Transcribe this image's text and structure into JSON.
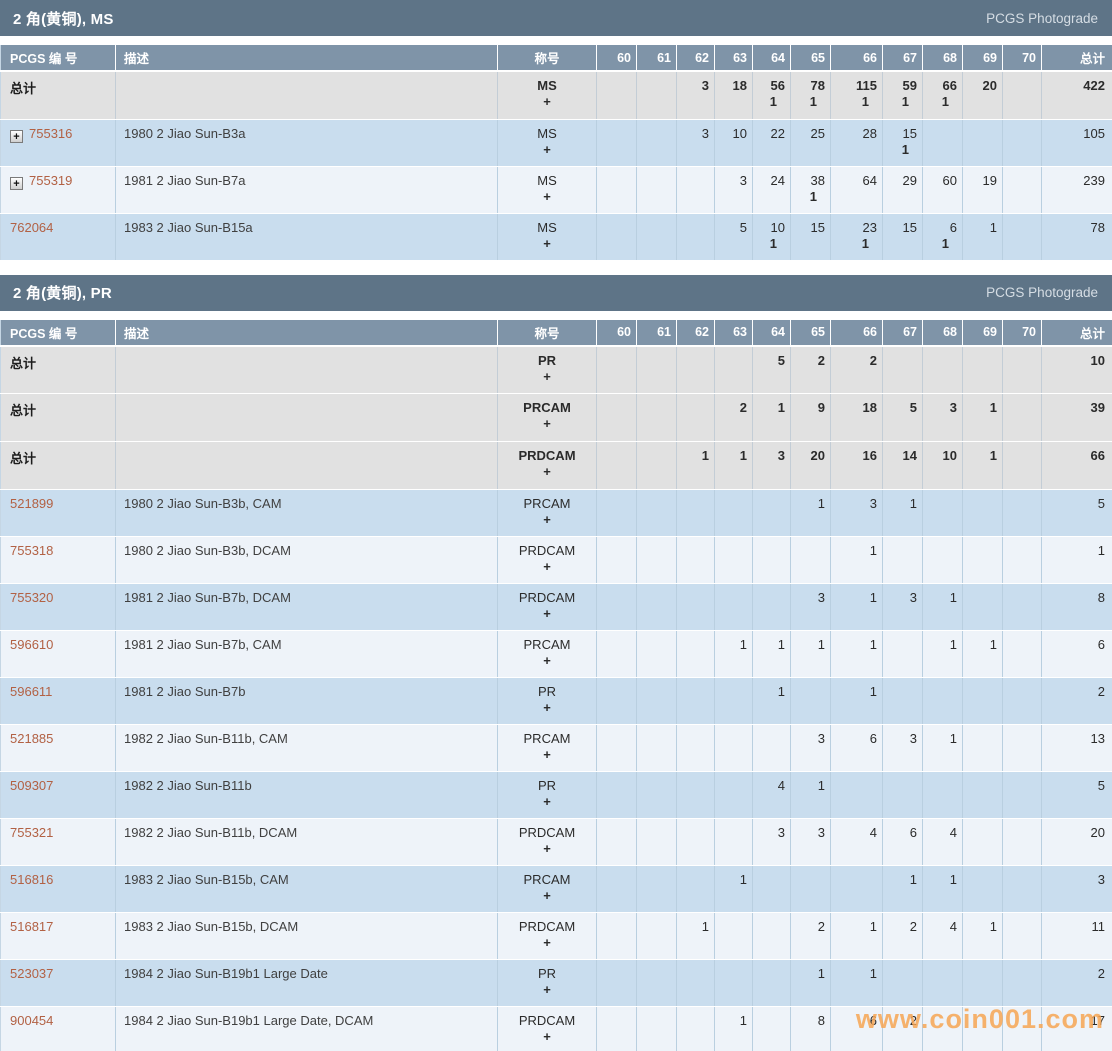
{
  "page": {
    "photograde_label": "PCGS Photograde",
    "watermark": "www.coin001.com"
  },
  "colors": {
    "section_bar": "#5e7487",
    "column_header": "#7f94a8",
    "total_row_bg": "#e1e1e1",
    "row_blue": "#c9ddee",
    "row_white": "#eef3f9",
    "link": "#b26144",
    "watermark": "#f6a454"
  },
  "columns": {
    "pcgs_number": "PCGS 编 号",
    "description": "描述",
    "designation": "称号",
    "grades": [
      "60",
      "61",
      "62",
      "63",
      "64",
      "65",
      "66",
      "67",
      "68",
      "69",
      "70"
    ],
    "total": "总计"
  },
  "tables": [
    {
      "title": "2 角(黄铜), MS",
      "rows": [
        {
          "type": "total",
          "label": "总计",
          "desc": "",
          "designation": "MS",
          "plus": "+",
          "grades": {
            "62": "3",
            "63": "18",
            "64": "56",
            "65": "78",
            "66": "115",
            "67": "59",
            "68": "66",
            "69": "20"
          },
          "plus_counts": {
            "64": "1",
            "65": "1",
            "66": "1",
            "67": "1",
            "68": "1"
          },
          "total": "422"
        },
        {
          "type": "item",
          "expand": true,
          "number": "755316",
          "desc": "1980 2 Jiao Sun-B3a",
          "designation": "MS",
          "plus": "+",
          "grades": {
            "62": "3",
            "63": "10",
            "64": "22",
            "65": "25",
            "66": "28",
            "67": "15"
          },
          "plus_counts": {
            "67": "1"
          },
          "total": "105"
        },
        {
          "type": "item",
          "expand": true,
          "number": "755319",
          "desc": "1981 2 Jiao Sun-B7a",
          "designation": "MS",
          "plus": "+",
          "grades": {
            "63": "3",
            "64": "24",
            "65": "38",
            "66": "64",
            "67": "29",
            "68": "60",
            "69": "19"
          },
          "plus_counts": {
            "65": "1"
          },
          "total": "239"
        },
        {
          "type": "item",
          "expand": false,
          "number": "762064",
          "desc": "1983 2 Jiao Sun-B15a",
          "designation": "MS",
          "plus": "+",
          "grades": {
            "63": "5",
            "64": "10",
            "65": "15",
            "66": "23",
            "67": "15",
            "68": "6",
            "69": "1"
          },
          "plus_counts": {
            "64": "1",
            "66": "1",
            "68": "1"
          },
          "total": "78"
        }
      ]
    },
    {
      "title": "2 角(黄铜), PR",
      "rows": [
        {
          "type": "total",
          "label": "总计",
          "desc": "",
          "designation": "PR",
          "plus": "+",
          "grades": {
            "64": "5",
            "65": "2",
            "66": "2"
          },
          "plus_counts": {},
          "total": "10"
        },
        {
          "type": "total",
          "label": "总计",
          "desc": "",
          "designation": "PRCAM",
          "plus": "+",
          "grades": {
            "63": "2",
            "64": "1",
            "65": "9",
            "66": "18",
            "67": "5",
            "68": "3",
            "69": "1"
          },
          "plus_counts": {},
          "total": "39"
        },
        {
          "type": "total",
          "label": "总计",
          "desc": "",
          "designation": "PRDCAM",
          "plus": "+",
          "grades": {
            "62": "1",
            "63": "1",
            "64": "3",
            "65": "20",
            "66": "16",
            "67": "14",
            "68": "10",
            "69": "1"
          },
          "plus_counts": {},
          "total": "66"
        },
        {
          "type": "item",
          "expand": false,
          "number": "521899",
          "desc": "1980 2 Jiao Sun-B3b, CAM",
          "designation": "PRCAM",
          "plus": "+",
          "grades": {
            "65": "1",
            "66": "3",
            "67": "1"
          },
          "plus_counts": {},
          "total": "5"
        },
        {
          "type": "item",
          "expand": false,
          "number": "755318",
          "desc": "1980 2 Jiao Sun-B3b, DCAM",
          "designation": "PRDCAM",
          "plus": "+",
          "grades": {
            "66": "1"
          },
          "plus_counts": {},
          "total": "1"
        },
        {
          "type": "item",
          "expand": false,
          "number": "755320",
          "desc": "1981 2 Jiao Sun-B7b, DCAM",
          "designation": "PRDCAM",
          "plus": "+",
          "grades": {
            "65": "3",
            "66": "1",
            "67": "3",
            "68": "1"
          },
          "plus_counts": {},
          "total": "8"
        },
        {
          "type": "item",
          "expand": false,
          "number": "596610",
          "desc": "1981 2 Jiao Sun-B7b, CAM",
          "designation": "PRCAM",
          "plus": "+",
          "grades": {
            "63": "1",
            "64": "1",
            "65": "1",
            "66": "1",
            "68": "1",
            "69": "1"
          },
          "plus_counts": {},
          "total": "6"
        },
        {
          "type": "item",
          "expand": false,
          "number": "596611",
          "desc": "1981 2 Jiao Sun-B7b",
          "designation": "PR",
          "plus": "+",
          "grades": {
            "64": "1",
            "66": "1"
          },
          "plus_counts": {},
          "total": "2"
        },
        {
          "type": "item",
          "expand": false,
          "number": "521885",
          "desc": "1982 2 Jiao Sun-B11b, CAM",
          "designation": "PRCAM",
          "plus": "+",
          "grades": {
            "65": "3",
            "66": "6",
            "67": "3",
            "68": "1"
          },
          "plus_counts": {},
          "total": "13"
        },
        {
          "type": "item",
          "expand": false,
          "number": "509307",
          "desc": "1982 2 Jiao Sun-B11b",
          "designation": "PR",
          "plus": "+",
          "grades": {
            "64": "4",
            "65": "1"
          },
          "plus_counts": {},
          "total": "5"
        },
        {
          "type": "item",
          "expand": false,
          "number": "755321",
          "desc": "1982 2 Jiao Sun-B11b, DCAM",
          "designation": "PRDCAM",
          "plus": "+",
          "grades": {
            "64": "3",
            "65": "3",
            "66": "4",
            "67": "6",
            "68": "4"
          },
          "plus_counts": {},
          "total": "20"
        },
        {
          "type": "item",
          "expand": false,
          "number": "516816",
          "desc": "1983 2 Jiao Sun-B15b, CAM",
          "designation": "PRCAM",
          "plus": "+",
          "grades": {
            "63": "1",
            "67": "1",
            "68": "1"
          },
          "plus_counts": {},
          "total": "3"
        },
        {
          "type": "item",
          "expand": false,
          "number": "516817",
          "desc": "1983 2 Jiao Sun-B15b, DCAM",
          "designation": "PRDCAM",
          "plus": "+",
          "grades": {
            "62": "1",
            "65": "2",
            "66": "1",
            "67": "2",
            "68": "4",
            "69": "1"
          },
          "plus_counts": {},
          "total": "11"
        },
        {
          "type": "item",
          "expand": false,
          "number": "523037",
          "desc": "1984 2 Jiao Sun-B19b1 Large Date",
          "designation": "PR",
          "plus": "+",
          "grades": {
            "65": "1",
            "66": "1"
          },
          "plus_counts": {},
          "total": "2"
        },
        {
          "type": "item",
          "expand": false,
          "number": "900454",
          "desc": "1984 2 Jiao Sun-B19b1 Large Date, DCAM",
          "designation": "PRDCAM",
          "plus": "+",
          "grades": {
            "63": "1",
            "65": "8",
            "66": "6",
            "67": "2"
          },
          "plus_counts": {},
          "total": "17"
        }
      ]
    }
  ]
}
